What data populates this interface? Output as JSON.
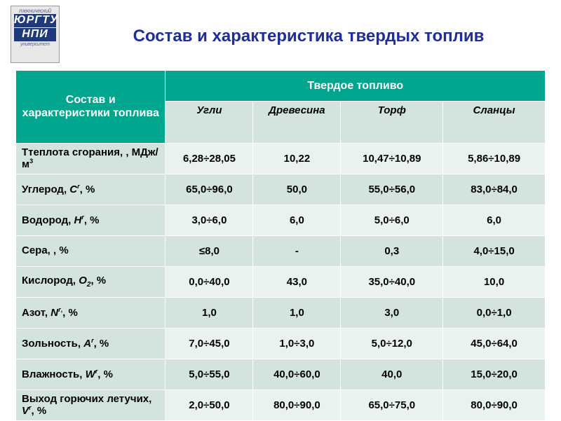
{
  "logo": {
    "top": "технический",
    "mid1": "ЮРГТУ",
    "mid2": "НПИ",
    "bottom": "университет"
  },
  "title": "Состав и характеристика твердых топлив",
  "header": {
    "left": "Состав и характеристики топлива",
    "top": "Твердое топливо",
    "cols": [
      "Угли",
      "Древесина",
      "Торф",
      "Сланцы"
    ]
  },
  "rows": [
    {
      "param_html": " Ттеплота сгорания, , МДж/м<sup>3</sup>",
      "vals": [
        "6,28÷28,05",
        "10,22",
        "10,47÷10,89",
        "5,86÷10,89"
      ]
    },
    {
      "param_html": " Углерод, <span class='ital'>C<sup>r</sup></span>, %",
      "vals": [
        "65,0÷96,0",
        "50,0",
        "55,0÷56,0",
        "83,0÷84,0"
      ]
    },
    {
      "param_html": " Водород, <span class='ital'>H<sup>r</sup></span>, %",
      "vals": [
        "3,0÷6,0",
        "6,0",
        "5,0÷6,0",
        "6,0"
      ]
    },
    {
      "param_html": " Сера,  , %",
      "vals": [
        "≤8,0",
        "-",
        "0,3",
        "4,0÷15,0"
      ]
    },
    {
      "param_html": " Кислород, <span class='ital'>O<sub>2</sub></span>, %",
      "vals": [
        "0,0÷40,0",
        "43,0",
        "35,0÷40,0",
        "10,0"
      ]
    },
    {
      "param_html": "Азот, <span class='ital'>N<sup>r</sup></span><sup>,</sup>, %",
      "vals": [
        "1,0",
        "1,0",
        "3,0",
        "0,0÷1,0"
      ]
    },
    {
      "param_html": " Зольность, <span class='ital'>A<sup>r</sup></span>, %",
      "vals": [
        "7,0÷45,0",
        "1,0÷3,0",
        "5,0÷12,0",
        "45,0÷64,0"
      ]
    },
    {
      "param_html": "Влажность, <span class='ital'>W<sup>r</sup></span>, %",
      "vals": [
        "5,0÷55,0",
        "40,0÷60,0",
        "40,0",
        "15,0÷20,0"
      ]
    },
    {
      "param_html": "Выход горючих летучих, <span class='ital'>V<sup>r</sup></span>, %",
      "vals": [
        "2,0÷50,0",
        "80,0÷90,0",
        "65,0÷75,0",
        "80,0÷90,0"
      ]
    }
  ],
  "style": {
    "header_bg": "#00a78e",
    "band_a": "#eaf2ef",
    "band_b": "#d3e3de",
    "title_color": "#1f2e99",
    "font_sizes": {
      "title": 24,
      "header": 16,
      "sub": 15,
      "cell": 15
    }
  }
}
